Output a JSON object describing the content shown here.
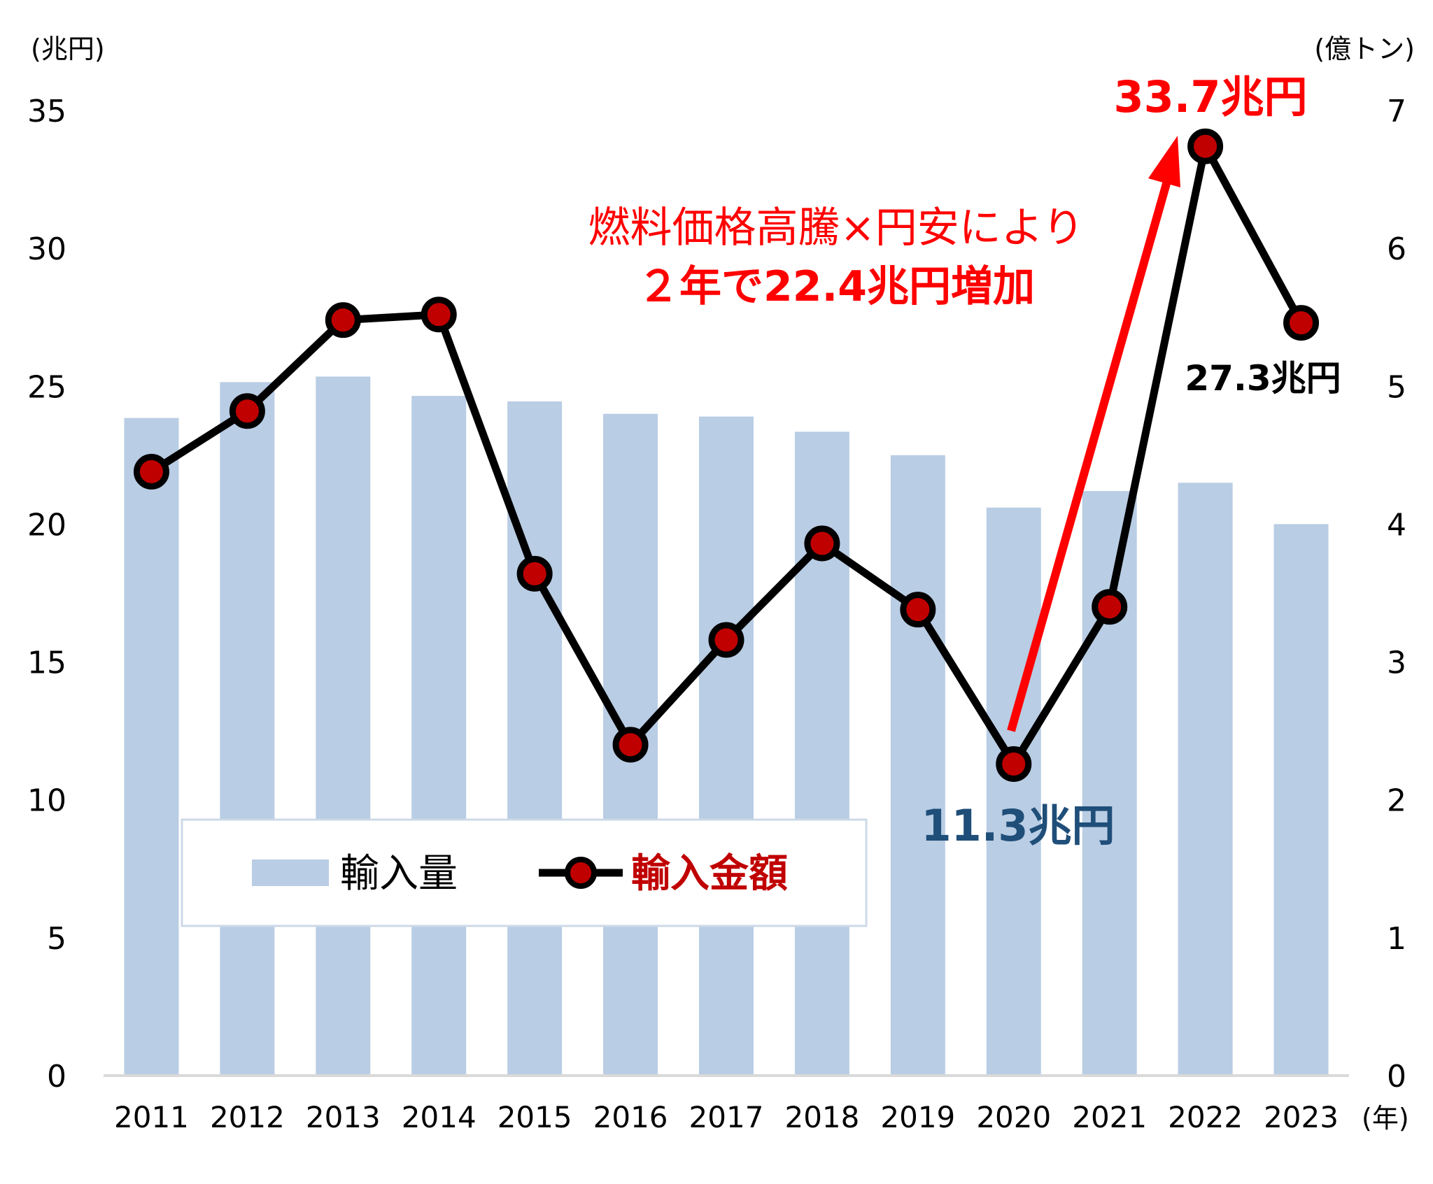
{
  "chart_data": {
    "type": "bar+line",
    "categories": [
      "2011",
      "2012",
      "2013",
      "2014",
      "2015",
      "2016",
      "2017",
      "2018",
      "2019",
      "2020",
      "2021",
      "2022",
      "2023"
    ],
    "x_unit": "(年)",
    "left_axis": {
      "unit": "(兆円)",
      "range": [
        0,
        35
      ],
      "ticks": [
        0,
        5,
        10,
        15,
        20,
        25,
        30,
        35
      ]
    },
    "right_axis": {
      "unit": "(億トン)",
      "range": [
        0,
        7
      ],
      "ticks": [
        0,
        1,
        2,
        3,
        4,
        5,
        6,
        7
      ]
    },
    "series": [
      {
        "name": "輸入量",
        "type": "bar",
        "axis": "right",
        "color": "#b9cde4",
        "values": [
          4.77,
          5.03,
          5.07,
          4.93,
          4.89,
          4.8,
          4.78,
          4.67,
          4.5,
          4.12,
          4.24,
          4.3,
          4.0
        ]
      },
      {
        "name": "輸入金額",
        "type": "line",
        "axis": "left",
        "color": "#000000",
        "marker_color": "#c00000",
        "values": [
          21.9,
          24.1,
          27.4,
          27.6,
          18.2,
          12.0,
          15.8,
          19.3,
          16.9,
          11.3,
          17.0,
          33.7,
          27.3
        ]
      }
    ],
    "annotations": {
      "peak_label": "33.7兆円",
      "peak_color": "#ff0000",
      "low_label": "11.3兆円",
      "low_color": "#1f4e79",
      "last_label": "27.3兆円",
      "last_color": "#000000",
      "note_line1": "燃料価格高騰×円安により",
      "note_line2": "２年で22.4兆円増加",
      "note_color": "#ff0000",
      "arrow_color": "#ff0000"
    },
    "legend": {
      "bar_label": "輸入量",
      "line_label": "輸入金額",
      "line_label_color": "#c00000"
    }
  }
}
